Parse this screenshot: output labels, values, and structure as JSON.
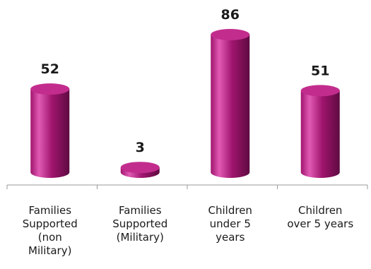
{
  "chart_data": {
    "type": "bar",
    "categories": [
      [
        "Families",
        "Supported",
        "(non",
        "Military)"
      ],
      [
        "Families",
        "Supported",
        "(Military)"
      ],
      [
        "Children",
        "under 5",
        "years"
      ],
      [
        "Children",
        "over 5 years"
      ]
    ],
    "values": [
      52,
      3,
      86,
      51
    ],
    "data_labels": [
      "52",
      "3",
      "86",
      "51"
    ],
    "ylim": [
      0,
      86
    ],
    "grid": false,
    "legend": "none",
    "bar_style": "cylinder",
    "colors": {
      "bar_body": "#A0156E",
      "bar_highlight": "#E05AB4",
      "bar_shadow": "#5E0A41",
      "bar_top": "#C22D8D",
      "axis": "#9a9a9a"
    }
  }
}
